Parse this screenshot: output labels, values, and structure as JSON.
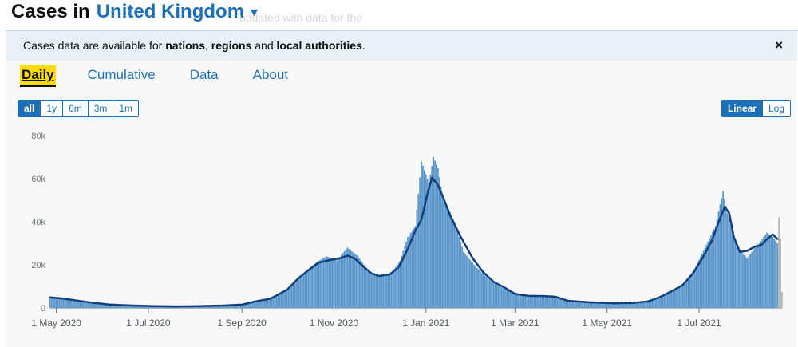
{
  "header": {
    "title_prefix": "Cases in",
    "area_name": "United Kingdom",
    "dropdown_glyph": "▾"
  },
  "background_text": "updated with data for the",
  "banner": {
    "text_before": "Cases data are available for ",
    "nations": "nations",
    "comma": ", ",
    "regions": "regions",
    "and": " and ",
    "local": "local authorities",
    "period": ".",
    "close_glyph": "×"
  },
  "tabs": [
    {
      "label": "Daily",
      "active": true
    },
    {
      "label": "Cumulative",
      "active": false
    },
    {
      "label": "Data",
      "active": false
    },
    {
      "label": "About",
      "active": false
    }
  ],
  "time_range": {
    "options": [
      "all",
      "1y",
      "6m",
      "3m",
      "1m"
    ],
    "selected": "all"
  },
  "scale": {
    "options": [
      "Linear",
      "Log"
    ],
    "selected": "Linear"
  },
  "colors": {
    "bar": "#5694ca",
    "incomplete_bar": "#b1b4b6",
    "average_line": "#12407c",
    "accent": "#1d70b8",
    "tab_highlight": "#ffdd00"
  },
  "chart_data": {
    "type": "bar",
    "ylim": [
      0,
      80000
    ],
    "y_ticks": [
      0,
      20000,
      40000,
      60000,
      80000
    ],
    "y_tick_labels": [
      "0",
      "20k",
      "40k",
      "60k",
      "80k"
    ],
    "x_range": [
      "2020-04-27",
      "2021-08-22"
    ],
    "x_ticks": [
      {
        "date": "2020-05-01",
        "label": "1 May 2020"
      },
      {
        "date": "2020-07-01",
        "label": "1 Jul 2020"
      },
      {
        "date": "2020-09-01",
        "label": "1 Sep 2020"
      },
      {
        "date": "2020-11-01",
        "label": "1 Nov 2020"
      },
      {
        "date": "2021-01-01",
        "label": "1 Jan 2021"
      },
      {
        "date": "2021-03-01",
        "label": "1 Mar 2021"
      },
      {
        "date": "2021-05-01",
        "label": "1 May 2021"
      },
      {
        "date": "2021-07-01",
        "label": "1 Jul 2021"
      }
    ],
    "series": [
      {
        "kind": "daily",
        "points": [
          [
            "2020-04-27",
            4800
          ],
          [
            "2020-05-04",
            4500
          ],
          [
            "2020-05-11",
            3600
          ],
          [
            "2020-05-18",
            2900
          ],
          [
            "2020-05-25",
            2300
          ],
          [
            "2020-06-01",
            1700
          ],
          [
            "2020-06-15",
            1200
          ],
          [
            "2020-07-01",
            850
          ],
          [
            "2020-07-15",
            700
          ],
          [
            "2020-08-01",
            850
          ],
          [
            "2020-08-15",
            1100
          ],
          [
            "2020-09-01",
            1500
          ],
          [
            "2020-09-10",
            3200
          ],
          [
            "2020-09-20",
            4200
          ],
          [
            "2020-10-01",
            8000
          ],
          [
            "2020-10-10",
            15000
          ],
          [
            "2020-10-20",
            21000
          ],
          [
            "2020-10-27",
            24000
          ],
          [
            "2020-11-03",
            22000
          ],
          [
            "2020-11-10",
            28000
          ],
          [
            "2020-11-17",
            24000
          ],
          [
            "2020-11-24",
            17000
          ],
          [
            "2020-12-01",
            14500
          ],
          [
            "2020-12-08",
            15000
          ],
          [
            "2020-12-15",
            22000
          ],
          [
            "2020-12-20",
            33000
          ],
          [
            "2020-12-25",
            38000
          ],
          [
            "2020-12-29",
            68000
          ],
          [
            "2021-01-03",
            58000
          ],
          [
            "2021-01-06",
            70000
          ],
          [
            "2021-01-09",
            65000
          ],
          [
            "2021-01-12",
            52000
          ],
          [
            "2021-01-16",
            46000
          ],
          [
            "2021-01-20",
            40000
          ],
          [
            "2021-01-26",
            26000
          ],
          [
            "2021-02-02",
            20000
          ],
          [
            "2021-02-09",
            15000
          ],
          [
            "2021-02-16",
            11000
          ],
          [
            "2021-02-23",
            8500
          ],
          [
            "2021-03-01",
            6500
          ],
          [
            "2021-03-10",
            6000
          ],
          [
            "2021-03-20",
            5500
          ],
          [
            "2021-04-01",
            4200
          ],
          [
            "2021-04-15",
            3000
          ],
          [
            "2021-05-01",
            2200
          ],
          [
            "2021-05-15",
            2300
          ],
          [
            "2021-05-25",
            2900
          ],
          [
            "2021-06-01",
            4000
          ],
          [
            "2021-06-10",
            6500
          ],
          [
            "2021-06-20",
            10500
          ],
          [
            "2021-06-28",
            18000
          ],
          [
            "2021-07-05",
            28000
          ],
          [
            "2021-07-12",
            38000
          ],
          [
            "2021-07-15",
            48000
          ],
          [
            "2021-07-17",
            54000
          ],
          [
            "2021-07-20",
            44000
          ],
          [
            "2021-07-24",
            33000
          ],
          [
            "2021-07-28",
            27000
          ],
          [
            "2021-08-02",
            23000
          ],
          [
            "2021-08-07",
            28000
          ],
          [
            "2021-08-11",
            31000
          ],
          [
            "2021-08-15",
            35000
          ],
          [
            "2021-08-19",
            33000
          ],
          [
            "2021-08-22",
            30000
          ]
        ]
      },
      {
        "kind": "7-day average",
        "points": [
          [
            "2020-04-27",
            4900
          ],
          [
            "2020-05-05",
            4400
          ],
          [
            "2020-05-15",
            3400
          ],
          [
            "2020-05-25",
            2400
          ],
          [
            "2020-06-05",
            1600
          ],
          [
            "2020-06-20",
            1100
          ],
          [
            "2020-07-05",
            800
          ],
          [
            "2020-07-20",
            700
          ],
          [
            "2020-08-05",
            850
          ],
          [
            "2020-08-20",
            1100
          ],
          [
            "2020-09-01",
            1500
          ],
          [
            "2020-09-10",
            3000
          ],
          [
            "2020-09-20",
            4300
          ],
          [
            "2020-10-01",
            8500
          ],
          [
            "2020-10-08",
            13500
          ],
          [
            "2020-10-15",
            17500
          ],
          [
            "2020-10-22",
            21000
          ],
          [
            "2020-10-29",
            22200
          ],
          [
            "2020-11-05",
            23000
          ],
          [
            "2020-11-10",
            24300
          ],
          [
            "2020-11-15",
            22800
          ],
          [
            "2020-11-20",
            19500
          ],
          [
            "2020-11-26",
            16000
          ],
          [
            "2020-12-01",
            14800
          ],
          [
            "2020-12-08",
            15500
          ],
          [
            "2020-12-14",
            19000
          ],
          [
            "2020-12-19",
            26000
          ],
          [
            "2020-12-25",
            36000
          ],
          [
            "2020-12-29",
            41000
          ],
          [
            "2021-01-02",
            53000
          ],
          [
            "2021-01-05",
            60500
          ],
          [
            "2021-01-09",
            57000
          ],
          [
            "2021-01-12",
            52000
          ],
          [
            "2021-01-17",
            43000
          ],
          [
            "2021-01-24",
            33000
          ],
          [
            "2021-02-01",
            23000
          ],
          [
            "2021-02-08",
            16500
          ],
          [
            "2021-02-15",
            12000
          ],
          [
            "2021-02-22",
            9500
          ],
          [
            "2021-03-01",
            6500
          ],
          [
            "2021-03-10",
            5600
          ],
          [
            "2021-03-20",
            5500
          ],
          [
            "2021-03-28",
            5200
          ],
          [
            "2021-04-05",
            3300
          ],
          [
            "2021-04-20",
            2600
          ],
          [
            "2021-05-05",
            2200
          ],
          [
            "2021-05-18",
            2300
          ],
          [
            "2021-05-28",
            3000
          ],
          [
            "2021-06-05",
            5000
          ],
          [
            "2021-06-12",
            7500
          ],
          [
            "2021-06-20",
            10500
          ],
          [
            "2021-06-27",
            16000
          ],
          [
            "2021-07-04",
            24000
          ],
          [
            "2021-07-10",
            32000
          ],
          [
            "2021-07-14",
            40000
          ],
          [
            "2021-07-18",
            47000
          ],
          [
            "2021-07-21",
            44000
          ],
          [
            "2021-07-24",
            33000
          ],
          [
            "2021-07-28",
            26000
          ],
          [
            "2021-08-02",
            26500
          ],
          [
            "2021-08-07",
            28500
          ],
          [
            "2021-08-11",
            29000
          ],
          [
            "2021-08-15",
            32000
          ],
          [
            "2021-08-19",
            34000
          ],
          [
            "2021-08-22",
            32000
          ]
        ]
      }
    ],
    "incomplete_days": [
      [
        "2021-08-23",
        42000
      ],
      [
        "2021-08-24",
        32000
      ],
      [
        "2021-08-25",
        7500
      ]
    ]
  }
}
